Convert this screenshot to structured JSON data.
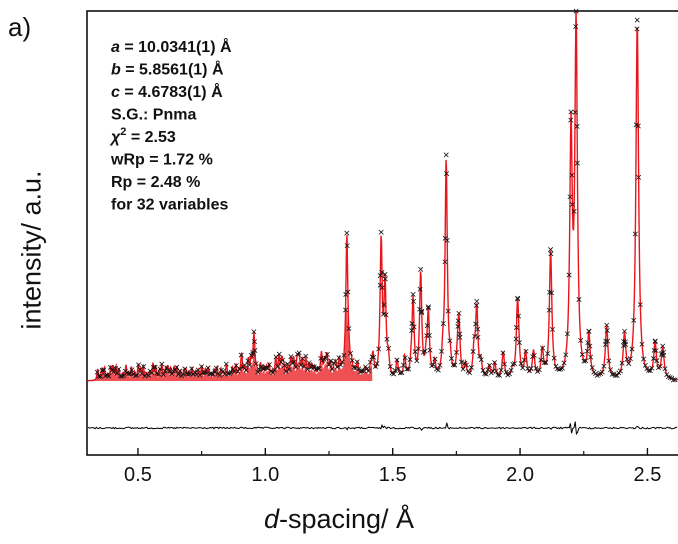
{
  "panel_label": "a)",
  "chart_data": {
    "type": "line",
    "xlabel_italic": "d",
    "xlabel_rest": "-spacing/ Å",
    "ylabel": "intensity/ a.u.",
    "xlim": [
      0.3,
      2.62
    ],
    "x_ticks": [
      0.5,
      1.0,
      1.5,
      2.0,
      2.5
    ],
    "x_tick_labels": [
      "0.5",
      "1.0",
      "1.5",
      "2.0",
      "2.5"
    ],
    "grid": false,
    "annotations": [
      {
        "label": "a",
        "text": " = 10.0341(1) Å"
      },
      {
        "label": "b",
        "text": " = 5.8561(1) Å"
      },
      {
        "label": "c",
        "text": " = 4.6783(1) Å"
      },
      {
        "label": "",
        "text": "S.G.: Pnma"
      },
      {
        "label": "χ",
        "sup": "2",
        "text": " = 2.53"
      },
      {
        "label": "",
        "text": "wRp = 1.72 %"
      },
      {
        "label": "",
        "text": "Rp = 2.48 %"
      },
      {
        "label": "",
        "text": "for 32 variables"
      }
    ],
    "series": [
      {
        "role": "observed",
        "marker": "x",
        "color": "#000000"
      },
      {
        "role": "calculated",
        "color": "#e8151b"
      },
      {
        "role": "difference",
        "color": "#000000"
      }
    ],
    "peaks": [
      {
        "d": 0.955,
        "h": 0.11
      },
      {
        "d": 1.32,
        "h": 0.4
      },
      {
        "d": 1.455,
        "h": 0.33
      },
      {
        "d": 1.47,
        "h": 0.26
      },
      {
        "d": 1.58,
        "h": 0.22
      },
      {
        "d": 1.61,
        "h": 0.28
      },
      {
        "d": 1.64,
        "h": 0.18
      },
      {
        "d": 1.71,
        "h": 0.62
      },
      {
        "d": 1.76,
        "h": 0.16
      },
      {
        "d": 1.83,
        "h": 0.2
      },
      {
        "d": 1.99,
        "h": 0.2
      },
      {
        "d": 2.12,
        "h": 0.36
      },
      {
        "d": 2.2,
        "h": 0.68
      },
      {
        "d": 2.22,
        "h": 1.0
      },
      {
        "d": 2.27,
        "h": 0.12
      },
      {
        "d": 2.34,
        "h": 0.15
      },
      {
        "d": 2.41,
        "h": 0.12
      },
      {
        "d": 2.46,
        "h": 1.02
      },
      {
        "d": 2.53,
        "h": 0.1
      },
      {
        "d": 2.56,
        "h": 0.09
      }
    ]
  }
}
